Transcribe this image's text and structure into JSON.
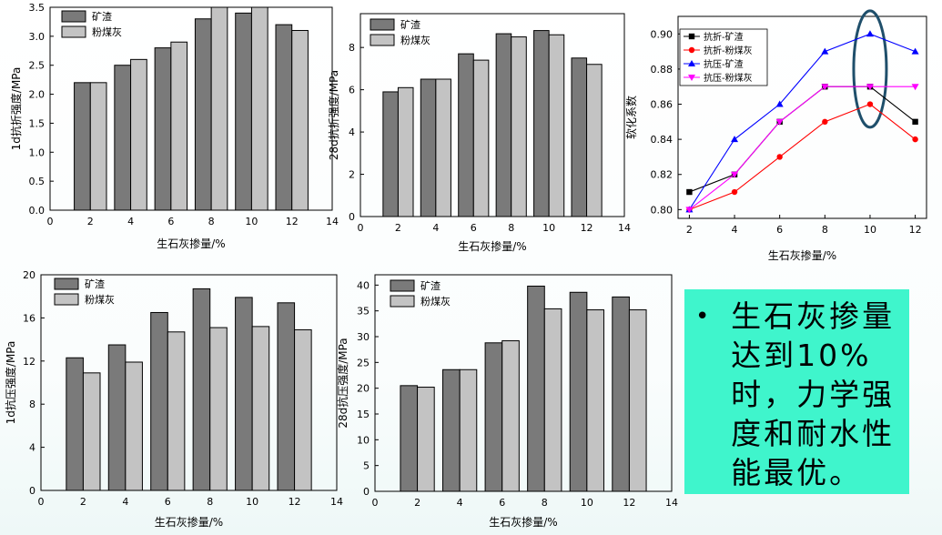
{
  "colors": {
    "dark_bar": "#7a7a7a",
    "light_bar": "#c3c3c3",
    "callout_bg": "#3ff5cc",
    "highlight_ellipse": "#1f4f6b"
  },
  "callout": {
    "bullet": "•",
    "text": "生石灰掺量达到10%时，力学强度和耐水性能最优。"
  },
  "chart_data": [
    {
      "type": "bar",
      "categories": [
        "2",
        "4",
        "6",
        "8",
        "10",
        "12"
      ],
      "series": [
        {
          "name": "矿渣",
          "values": [
            2.2,
            2.5,
            2.8,
            3.3,
            3.4,
            3.2
          ]
        },
        {
          "name": "粉煤灰",
          "values": [
            2.2,
            2.6,
            2.9,
            3.5,
            3.5,
            3.1
          ]
        }
      ],
      "xlabel": "生石灰掺量/%",
      "ylabel": "1d抗折强度/MPa",
      "xlim": [
        0,
        14
      ],
      "ylim": [
        0,
        3.5
      ],
      "xticks": [
        "0",
        "2",
        "4",
        "6",
        "8",
        "10",
        "12",
        "14"
      ],
      "yticks": [
        "0.0",
        "0.5",
        "1.0",
        "1.5",
        "2.0",
        "2.5",
        "3.0",
        "3.5"
      ],
      "legend": "top-left"
    },
    {
      "type": "bar",
      "categories": [
        "2",
        "4",
        "6",
        "8",
        "10",
        "12"
      ],
      "series": [
        {
          "name": "矿渣",
          "values": [
            5.9,
            6.5,
            7.7,
            8.65,
            8.8,
            7.5
          ]
        },
        {
          "name": "粉煤灰",
          "values": [
            6.1,
            6.5,
            7.4,
            8.5,
            8.6,
            7.2
          ]
        }
      ],
      "xlabel": "生石灰掺量/%",
      "ylabel": "28d抗折强度/MPa",
      "xlim": [
        0,
        14
      ],
      "ylim": [
        0,
        9.6
      ],
      "xticks": [
        "0",
        "2",
        "4",
        "6",
        "8",
        "10",
        "12",
        "14"
      ],
      "yticks": [
        "0",
        "2",
        "4",
        "6",
        "8"
      ],
      "legend": "top-left"
    },
    {
      "type": "line",
      "x": [
        2,
        4,
        6,
        8,
        10,
        12
      ],
      "series": [
        {
          "name": "抗折-矿渣",
          "values": [
            0.81,
            0.82,
            0.85,
            0.87,
            0.87,
            0.85
          ],
          "color": "#000000",
          "marker": "square"
        },
        {
          "name": "抗折-粉煤灰",
          "values": [
            0.8,
            0.81,
            0.83,
            0.85,
            0.86,
            0.84
          ],
          "color": "#ff0000",
          "marker": "circle"
        },
        {
          "name": "抗压-矿渣",
          "values": [
            0.8,
            0.84,
            0.86,
            0.89,
            0.9,
            0.89
          ],
          "color": "#0000ff",
          "marker": "triangle-up"
        },
        {
          "name": "抗压-粉煤灰",
          "values": [
            0.8,
            0.82,
            0.85,
            0.87,
            0.87,
            0.87
          ],
          "color": "#ff00ff",
          "marker": "triangle-down"
        }
      ],
      "xlabel": "生石灰掺量/%",
      "ylabel": "软化系数",
      "xlim": [
        1.5,
        12.5
      ],
      "ylim": [
        0.795,
        0.91
      ],
      "xticks": [
        "2",
        "4",
        "6",
        "8",
        "10",
        "12"
      ],
      "yticks": [
        "0.80",
        "0.82",
        "0.84",
        "0.86",
        "0.88",
        "0.90"
      ],
      "legend": "top-left",
      "highlight_x": 10
    },
    {
      "type": "bar",
      "categories": [
        "2",
        "4",
        "6",
        "8",
        "10",
        "12"
      ],
      "series": [
        {
          "name": "矿渣",
          "values": [
            12.3,
            13.5,
            16.5,
            18.7,
            17.9,
            17.4
          ]
        },
        {
          "name": "粉煤灰",
          "values": [
            10.9,
            11.9,
            14.7,
            15.1,
            15.2,
            14.9
          ]
        }
      ],
      "xlabel": "生石灰掺量/%",
      "ylabel": "1d抗压强度/MPa",
      "xlim": [
        0,
        14
      ],
      "ylim": [
        0,
        20
      ],
      "xticks": [
        "0",
        "2",
        "4",
        "6",
        "8",
        "10",
        "12",
        "14"
      ],
      "yticks": [
        "0",
        "4",
        "8",
        "12",
        "16",
        "20"
      ],
      "legend": "top-left"
    },
    {
      "type": "bar",
      "categories": [
        "2",
        "4",
        "6",
        "8",
        "10",
        "12"
      ],
      "series": [
        {
          "name": "矿渣",
          "values": [
            20.5,
            23.6,
            28.8,
            39.8,
            38.6,
            37.7
          ]
        },
        {
          "name": "粉煤灰",
          "values": [
            20.2,
            23.6,
            29.2,
            35.4,
            35.2,
            35.2
          ]
        }
      ],
      "xlabel": "生石灰掺量/%",
      "ylabel": "28d抗压强度/MPa",
      "xlim": [
        0,
        14
      ],
      "ylim": [
        0,
        42
      ],
      "xticks": [
        "0",
        "2",
        "4",
        "6",
        "8",
        "10",
        "12",
        "14"
      ],
      "yticks": [
        "0",
        "5",
        "10",
        "15",
        "20",
        "25",
        "30",
        "35",
        "40"
      ],
      "legend": "top-left"
    }
  ]
}
